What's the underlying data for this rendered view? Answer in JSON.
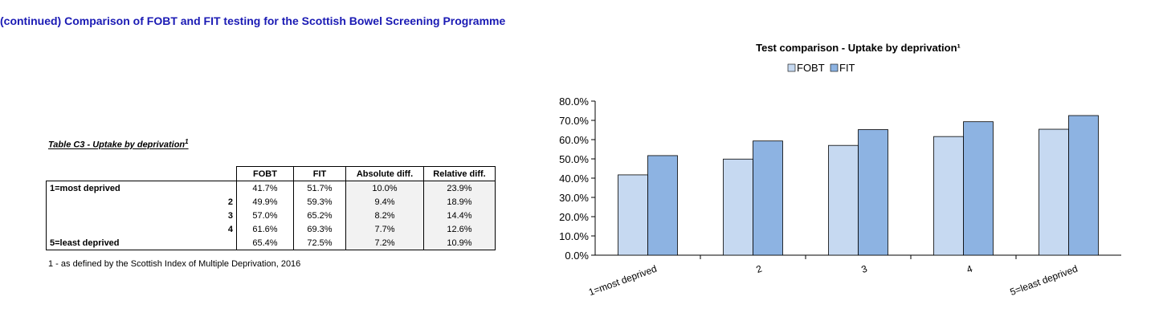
{
  "page_title": "(continued) Comparison of FOBT and FIT testing for the Scottish Bowel Screening Programme",
  "table": {
    "caption": "Table C3 - Uptake by deprivation",
    "caption_sup": "1",
    "headers": [
      "FOBT",
      "FIT",
      "Absolute diff.",
      "Relative diff."
    ],
    "rows": [
      {
        "label": "1=most deprived",
        "fobt": "41.7%",
        "fit": "51.7%",
        "abs": "10.0%",
        "rel": "23.9%"
      },
      {
        "label": "2",
        "fobt": "49.9%",
        "fit": "59.3%",
        "abs": "9.4%",
        "rel": "18.9%"
      },
      {
        "label": "3",
        "fobt": "57.0%",
        "fit": "65.2%",
        "abs": "8.2%",
        "rel": "14.4%"
      },
      {
        "label": "4",
        "fobt": "61.6%",
        "fit": "69.3%",
        "abs": "7.7%",
        "rel": "12.6%"
      },
      {
        "label": "5=least deprived",
        "fobt": "65.4%",
        "fit": "72.5%",
        "abs": "7.2%",
        "rel": "10.9%"
      }
    ],
    "footnote": "1 - as defined by the Scottish Index of Multiple Deprivation, 2016"
  },
  "chart_data": {
    "type": "bar",
    "title": "Test comparison - Uptake by deprivation¹",
    "categories": [
      "1=most deprived",
      "2",
      "3",
      "4",
      "5=least deprived"
    ],
    "series": [
      {
        "name": "FOBT",
        "values": [
          41.7,
          49.9,
          57.0,
          61.6,
          65.4
        ],
        "color": "#c6d9f1"
      },
      {
        "name": "FIT",
        "values": [
          51.7,
          59.3,
          65.2,
          69.3,
          72.5
        ],
        "color": "#8db3e2"
      }
    ],
    "ylim": [
      0,
      80
    ],
    "yticks": [
      "0.0%",
      "10.0%",
      "20.0%",
      "30.0%",
      "40.0%",
      "50.0%",
      "60.0%",
      "70.0%",
      "80.0%"
    ],
    "xlabel": "",
    "ylabel": "",
    "legend": "top-center",
    "grid": false
  }
}
